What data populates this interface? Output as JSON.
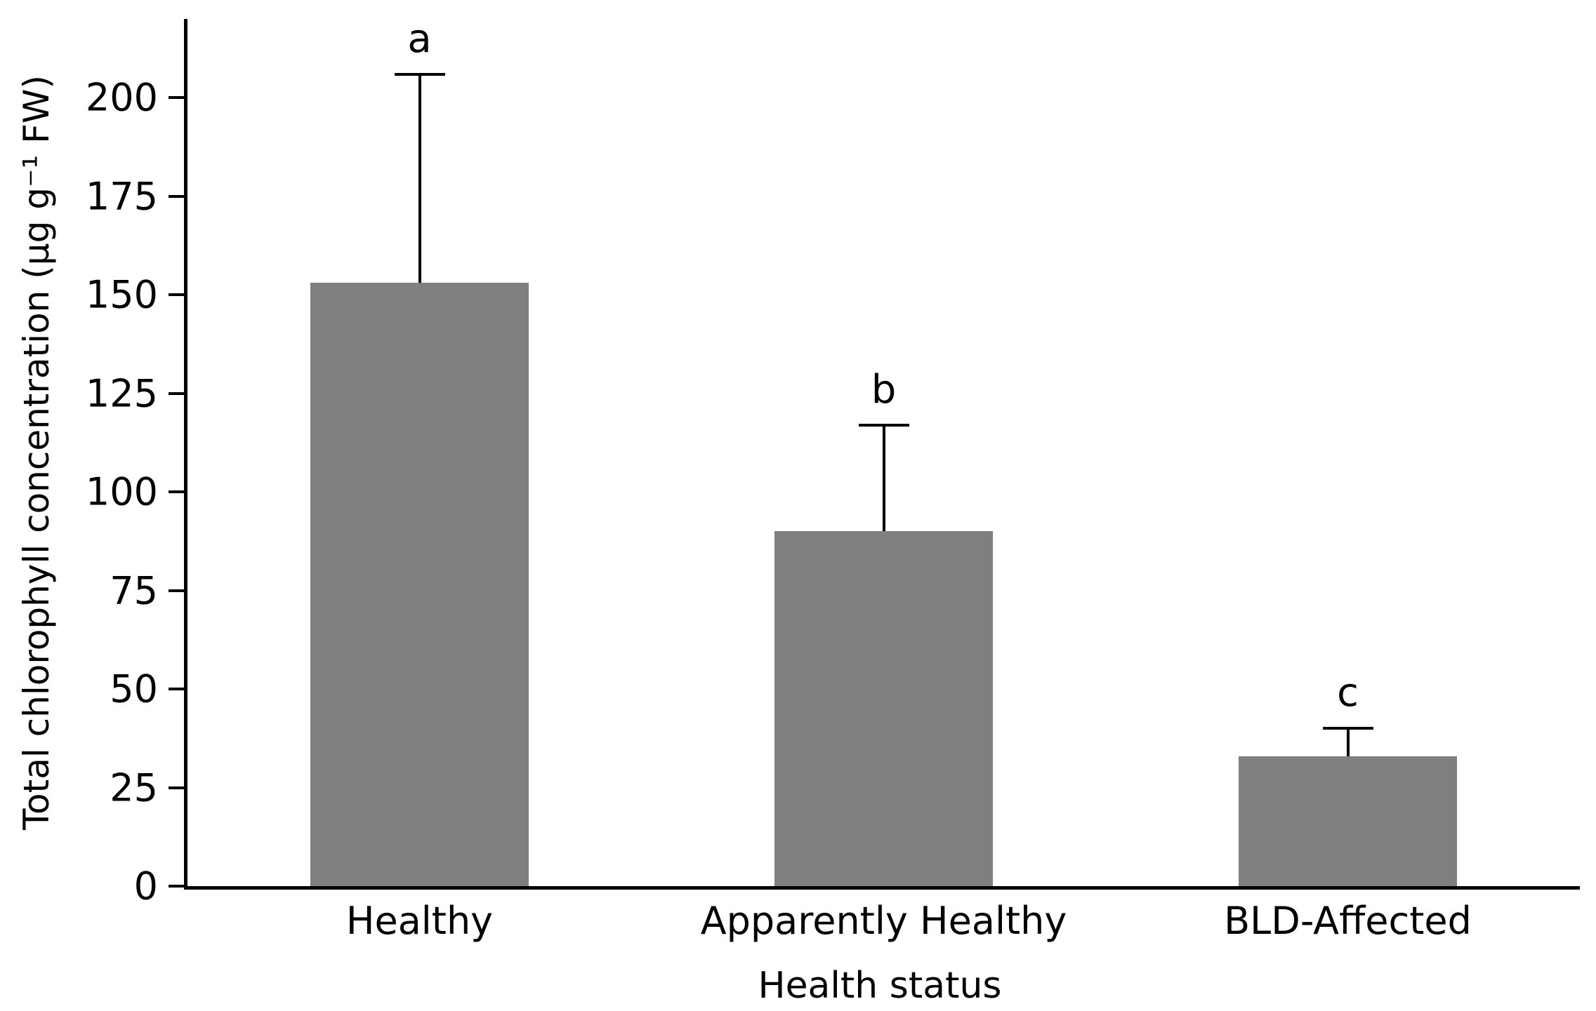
{
  "chart_data": {
    "type": "bar",
    "title": "",
    "xlabel": "Health status",
    "ylabel": "Total chlorophyll concentration (μg g⁻¹ FW)",
    "categories": [
      "Healthy",
      "Apparently Healthy",
      "BLD-Affected"
    ],
    "values": [
      153,
      90,
      33
    ],
    "error_upper": [
      53,
      27,
      7
    ],
    "sig_letters": [
      "a",
      "b",
      "c"
    ],
    "yticks": [
      0,
      25,
      50,
      75,
      100,
      125,
      150,
      175,
      200
    ],
    "ylim": [
      0,
      220
    ],
    "bar_color": "#7f7f7f",
    "errorbar_color": "#000000",
    "axis_color": "#000000",
    "grid": false,
    "legend_position": "none",
    "bar_width_fraction": 0.47
  }
}
